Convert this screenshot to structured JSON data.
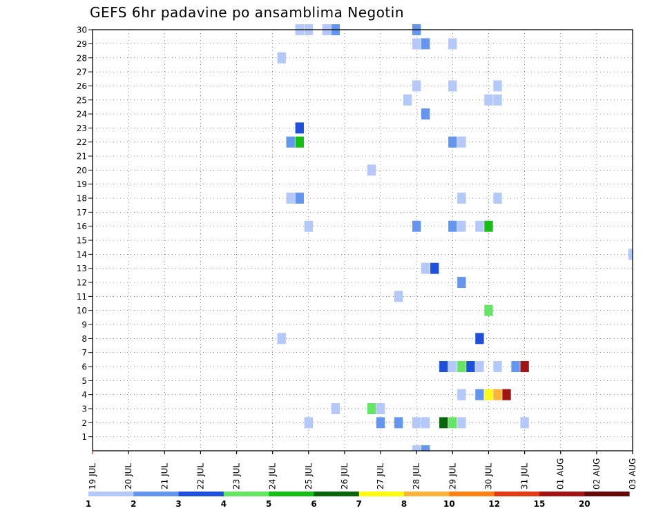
{
  "chart_data": {
    "type": "heatmap",
    "title": "GEFS 6hr padavine po ansamblima Negotin",
    "y_categories": [
      "1",
      "2",
      "3",
      "4",
      "5",
      "6",
      "7",
      "8",
      "9",
      "10",
      "11",
      "12",
      "13",
      "14",
      "15",
      "16",
      "17",
      "18",
      "19",
      "20",
      "21",
      "22",
      "23",
      "24",
      "25",
      "26",
      "27",
      "28",
      "29",
      "30"
    ],
    "x_ticks": [
      "19 JUL",
      "20 JUL",
      "21 JUL",
      "22 JUL",
      "23 JUL",
      "24 JUL",
      "25 JUL",
      "26 JUL",
      "27 JUL",
      "28 JUL",
      "29 JUL",
      "30 JUL",
      "31 JUL",
      "01 AUG",
      "02 AUG",
      "03 AUG"
    ],
    "x_unit": "6-hour steps (4 per day) starting 19 JUL 00Z",
    "grid": true,
    "legend": {
      "placement": "bottom",
      "labels": [
        "1",
        "2",
        "3",
        "4",
        "5",
        "6",
        "7",
        "8",
        "10",
        "12",
        "15",
        "20"
      ],
      "colors": [
        "#b4c8fa",
        "#6496f0",
        "#1e50dc",
        "#64e664",
        "#14be14",
        "#0a640a",
        "#fafa14",
        "#fab43c",
        "#fa8214",
        "#e13c14",
        "#a01414",
        "#640a0a"
      ]
    },
    "cells": [
      {
        "member": 30,
        "step": 23,
        "bin": 1
      },
      {
        "member": 30,
        "step": 24,
        "bin": 1
      },
      {
        "member": 30,
        "step": 26,
        "bin": 1
      },
      {
        "member": 30,
        "step": 27,
        "bin": 2
      },
      {
        "member": 30,
        "step": 36,
        "bin": 2
      },
      {
        "member": 29,
        "step": 36,
        "bin": 1
      },
      {
        "member": 29,
        "step": 37,
        "bin": 2
      },
      {
        "member": 29,
        "step": 40,
        "bin": 1
      },
      {
        "member": 28,
        "step": 21,
        "bin": 1
      },
      {
        "member": 26,
        "step": 36,
        "bin": 1
      },
      {
        "member": 26,
        "step": 40,
        "bin": 1
      },
      {
        "member": 26,
        "step": 45,
        "bin": 1
      },
      {
        "member": 25,
        "step": 35,
        "bin": 1
      },
      {
        "member": 25,
        "step": 44,
        "bin": 1
      },
      {
        "member": 25,
        "step": 45,
        "bin": 1
      },
      {
        "member": 24,
        "step": 37,
        "bin": 2
      },
      {
        "member": 23,
        "step": 23,
        "bin": 3
      },
      {
        "member": 22,
        "step": 22,
        "bin": 2
      },
      {
        "member": 22,
        "step": 23,
        "bin": 5
      },
      {
        "member": 22,
        "step": 40,
        "bin": 2
      },
      {
        "member": 22,
        "step": 41,
        "bin": 1
      },
      {
        "member": 20,
        "step": 31,
        "bin": 1
      },
      {
        "member": 18,
        "step": 22,
        "bin": 1
      },
      {
        "member": 18,
        "step": 23,
        "bin": 2
      },
      {
        "member": 18,
        "step": 41,
        "bin": 1
      },
      {
        "member": 18,
        "step": 45,
        "bin": 1
      },
      {
        "member": 16,
        "step": 24,
        "bin": 1
      },
      {
        "member": 16,
        "step": 36,
        "bin": 2
      },
      {
        "member": 16,
        "step": 40,
        "bin": 2
      },
      {
        "member": 16,
        "step": 41,
        "bin": 1
      },
      {
        "member": 16,
        "step": 43,
        "bin": 1
      },
      {
        "member": 16,
        "step": 44,
        "bin": 5
      },
      {
        "member": 14,
        "step": 60,
        "bin": 1
      },
      {
        "member": 13,
        "step": 37,
        "bin": 1
      },
      {
        "member": 13,
        "step": 38,
        "bin": 3
      },
      {
        "member": 12,
        "step": 41,
        "bin": 2
      },
      {
        "member": 11,
        "step": 34,
        "bin": 1
      },
      {
        "member": 10,
        "step": 44,
        "bin": 4
      },
      {
        "member": 8,
        "step": 21,
        "bin": 1
      },
      {
        "member": 8,
        "step": 43,
        "bin": 3
      },
      {
        "member": 6,
        "step": 39,
        "bin": 3
      },
      {
        "member": 6,
        "step": 40,
        "bin": 1
      },
      {
        "member": 6,
        "step": 41,
        "bin": 4
      },
      {
        "member": 6,
        "step": 42,
        "bin": 3
      },
      {
        "member": 6,
        "step": 43,
        "bin": 1
      },
      {
        "member": 6,
        "step": 45,
        "bin": 1
      },
      {
        "member": 6,
        "step": 47,
        "bin": 2
      },
      {
        "member": 6,
        "step": 48,
        "bin": 11
      },
      {
        "member": 4,
        "step": 41,
        "bin": 1
      },
      {
        "member": 4,
        "step": 43,
        "bin": 2
      },
      {
        "member": 4,
        "step": 44,
        "bin": 7
      },
      {
        "member": 4,
        "step": 45,
        "bin": 8
      },
      {
        "member": 4,
        "step": 46,
        "bin": 11
      },
      {
        "member": 3,
        "step": 27,
        "bin": 1
      },
      {
        "member": 3,
        "step": 31,
        "bin": 4
      },
      {
        "member": 3,
        "step": 32,
        "bin": 1
      },
      {
        "member": 2,
        "step": 24,
        "bin": 1
      },
      {
        "member": 2,
        "step": 32,
        "bin": 2
      },
      {
        "member": 2,
        "step": 34,
        "bin": 2
      },
      {
        "member": 2,
        "step": 36,
        "bin": 1
      },
      {
        "member": 2,
        "step": 37,
        "bin": 1
      },
      {
        "member": 2,
        "step": 39,
        "bin": 6
      },
      {
        "member": 2,
        "step": 40,
        "bin": 4
      },
      {
        "member": 2,
        "step": 41,
        "bin": 1
      },
      {
        "member": 2,
        "step": 48,
        "bin": 1
      },
      {
        "member": 0,
        "step": 36,
        "bin": 1
      },
      {
        "member": 0,
        "step": 37,
        "bin": 2
      }
    ]
  }
}
